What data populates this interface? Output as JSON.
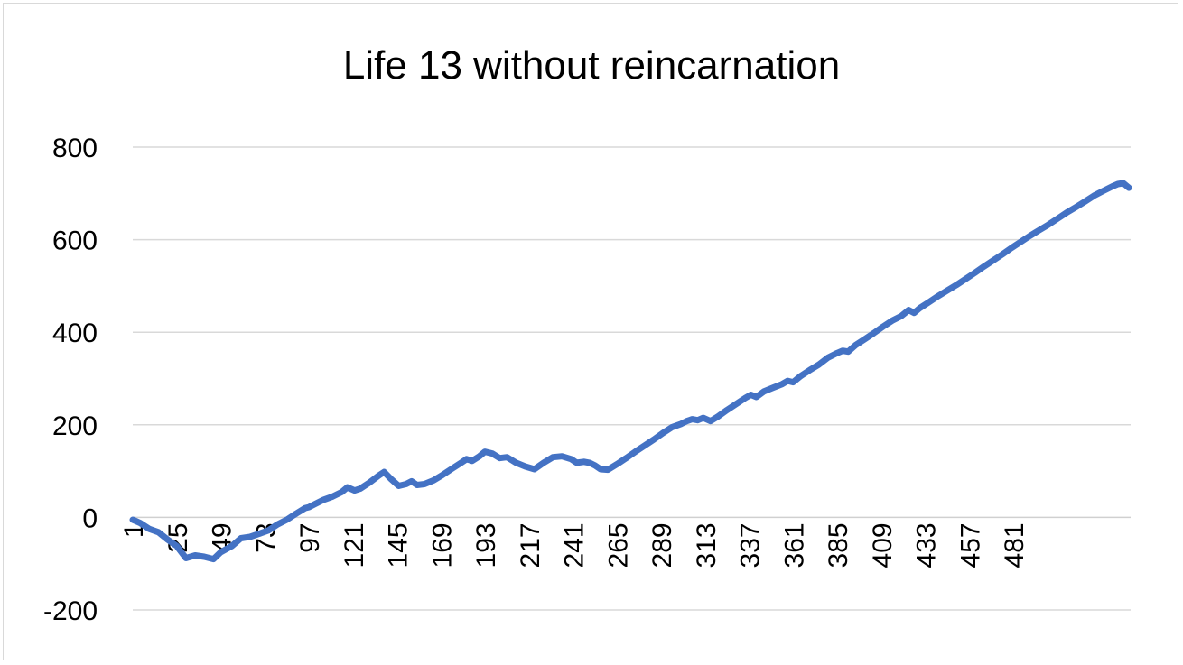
{
  "chart_data": {
    "type": "line",
    "title": "Life 13 without reincarnation",
    "xlabel": "",
    "ylabel": "",
    "ylim": [
      -200,
      800
    ],
    "yticks": [
      "800",
      "600",
      "400",
      "200",
      "0",
      "-200"
    ],
    "yticks_values": [
      800,
      600,
      400,
      200,
      0,
      -200
    ],
    "xticks": [
      "1",
      "25",
      "49",
      "73",
      "97",
      "121",
      "145",
      "169",
      "193",
      "217",
      "241",
      "265",
      "289",
      "313",
      "337",
      "361",
      "385",
      "409",
      "433",
      "457",
      "481"
    ],
    "x_count": 500,
    "grid": true,
    "legend": "none",
    "series_color": "#4472c4",
    "series": [
      {
        "points": [
          [
            1,
            -5
          ],
          [
            5,
            -12
          ],
          [
            10,
            -25
          ],
          [
            15,
            -32
          ],
          [
            20,
            -48
          ],
          [
            25,
            -62
          ],
          [
            30,
            -88
          ],
          [
            35,
            -82
          ],
          [
            40,
            -85
          ],
          [
            45,
            -90
          ],
          [
            49,
            -75
          ],
          [
            55,
            -62
          ],
          [
            60,
            -45
          ],
          [
            65,
            -42
          ],
          [
            70,
            -35
          ],
          [
            75,
            -28
          ],
          [
            80,
            -15
          ],
          [
            85,
            -5
          ],
          [
            90,
            8
          ],
          [
            95,
            20
          ],
          [
            97,
            22
          ],
          [
            100,
            28
          ],
          [
            105,
            38
          ],
          [
            110,
            45
          ],
          [
            115,
            55
          ],
          [
            118,
            65
          ],
          [
            122,
            58
          ],
          [
            125,
            62
          ],
          [
            130,
            75
          ],
          [
            135,
            90
          ],
          [
            138,
            98
          ],
          [
            142,
            82
          ],
          [
            146,
            68
          ],
          [
            150,
            72
          ],
          [
            153,
            78
          ],
          [
            156,
            70
          ],
          [
            160,
            72
          ],
          [
            165,
            80
          ],
          [
            170,
            92
          ],
          [
            175,
            105
          ],
          [
            180,
            118
          ],
          [
            183,
            126
          ],
          [
            186,
            122
          ],
          [
            190,
            132
          ],
          [
            193,
            142
          ],
          [
            197,
            138
          ],
          [
            201,
            128
          ],
          [
            205,
            130
          ],
          [
            210,
            118
          ],
          [
            215,
            110
          ],
          [
            220,
            104
          ],
          [
            225,
            118
          ],
          [
            230,
            130
          ],
          [
            235,
            132
          ],
          [
            240,
            126
          ],
          [
            243,
            118
          ],
          [
            247,
            120
          ],
          [
            250,
            118
          ],
          [
            253,
            112
          ],
          [
            256,
            104
          ],
          [
            260,
            103
          ],
          [
            265,
            115
          ],
          [
            270,
            128
          ],
          [
            275,
            142
          ],
          [
            280,
            155
          ],
          [
            285,
            168
          ],
          [
            290,
            182
          ],
          [
            295,
            195
          ],
          [
            300,
            202
          ],
          [
            303,
            208
          ],
          [
            306,
            212
          ],
          [
            309,
            210
          ],
          [
            312,
            215
          ],
          [
            316,
            208
          ],
          [
            320,
            218
          ],
          [
            325,
            232
          ],
          [
            330,
            245
          ],
          [
            335,
            258
          ],
          [
            338,
            265
          ],
          [
            341,
            260
          ],
          [
            345,
            272
          ],
          [
            350,
            280
          ],
          [
            355,
            288
          ],
          [
            358,
            295
          ],
          [
            361,
            292
          ],
          [
            365,
            305
          ],
          [
            370,
            318
          ],
          [
            375,
            330
          ],
          [
            380,
            345
          ],
          [
            385,
            355
          ],
          [
            388,
            360
          ],
          [
            391,
            358
          ],
          [
            395,
            372
          ],
          [
            400,
            385
          ],
          [
            405,
            398
          ],
          [
            410,
            412
          ],
          [
            415,
            425
          ],
          [
            420,
            435
          ],
          [
            424,
            448
          ],
          [
            427,
            442
          ],
          [
            430,
            452
          ],
          [
            435,
            465
          ],
          [
            440,
            478
          ],
          [
            445,
            490
          ],
          [
            450,
            502
          ],
          [
            455,
            515
          ],
          [
            460,
            528
          ],
          [
            465,
            542
          ],
          [
            470,
            555
          ],
          [
            475,
            568
          ],
          [
            480,
            582
          ],
          [
            485,
            595
          ],
          [
            490,
            608
          ],
          [
            495,
            620
          ],
          [
            500,
            632
          ],
          [
            505,
            645
          ],
          [
            510,
            658
          ],
          [
            515,
            670
          ],
          [
            520,
            682
          ],
          [
            525,
            695
          ],
          [
            530,
            705
          ],
          [
            535,
            715
          ],
          [
            538,
            720
          ],
          [
            541,
            722
          ],
          [
            544,
            712
          ]
        ]
      }
    ]
  }
}
